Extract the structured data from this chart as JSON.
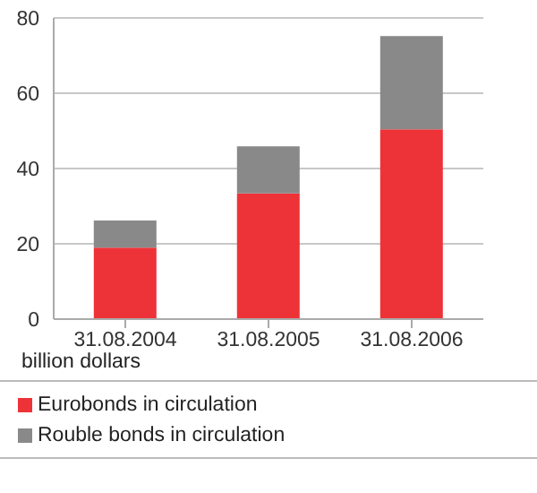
{
  "chart_data": {
    "type": "bar",
    "stacked": true,
    "ylabel": "billion dollars",
    "categories": [
      "31.08.2004",
      "31.08.2005",
      "31.08.2006"
    ],
    "series": [
      {
        "name": "Eurobonds in circulation",
        "color": "#ee3338",
        "values": [
          19,
          33.4,
          50.4
        ]
      },
      {
        "name": "Rouble bonds in circulation",
        "color": "#898989",
        "values": [
          7.2,
          12.5,
          24.8
        ]
      }
    ],
    "ylim": [
      0,
      80
    ],
    "yticks": [
      0,
      20,
      40,
      60,
      80
    ],
    "grid": "y",
    "legend": "bottom"
  }
}
